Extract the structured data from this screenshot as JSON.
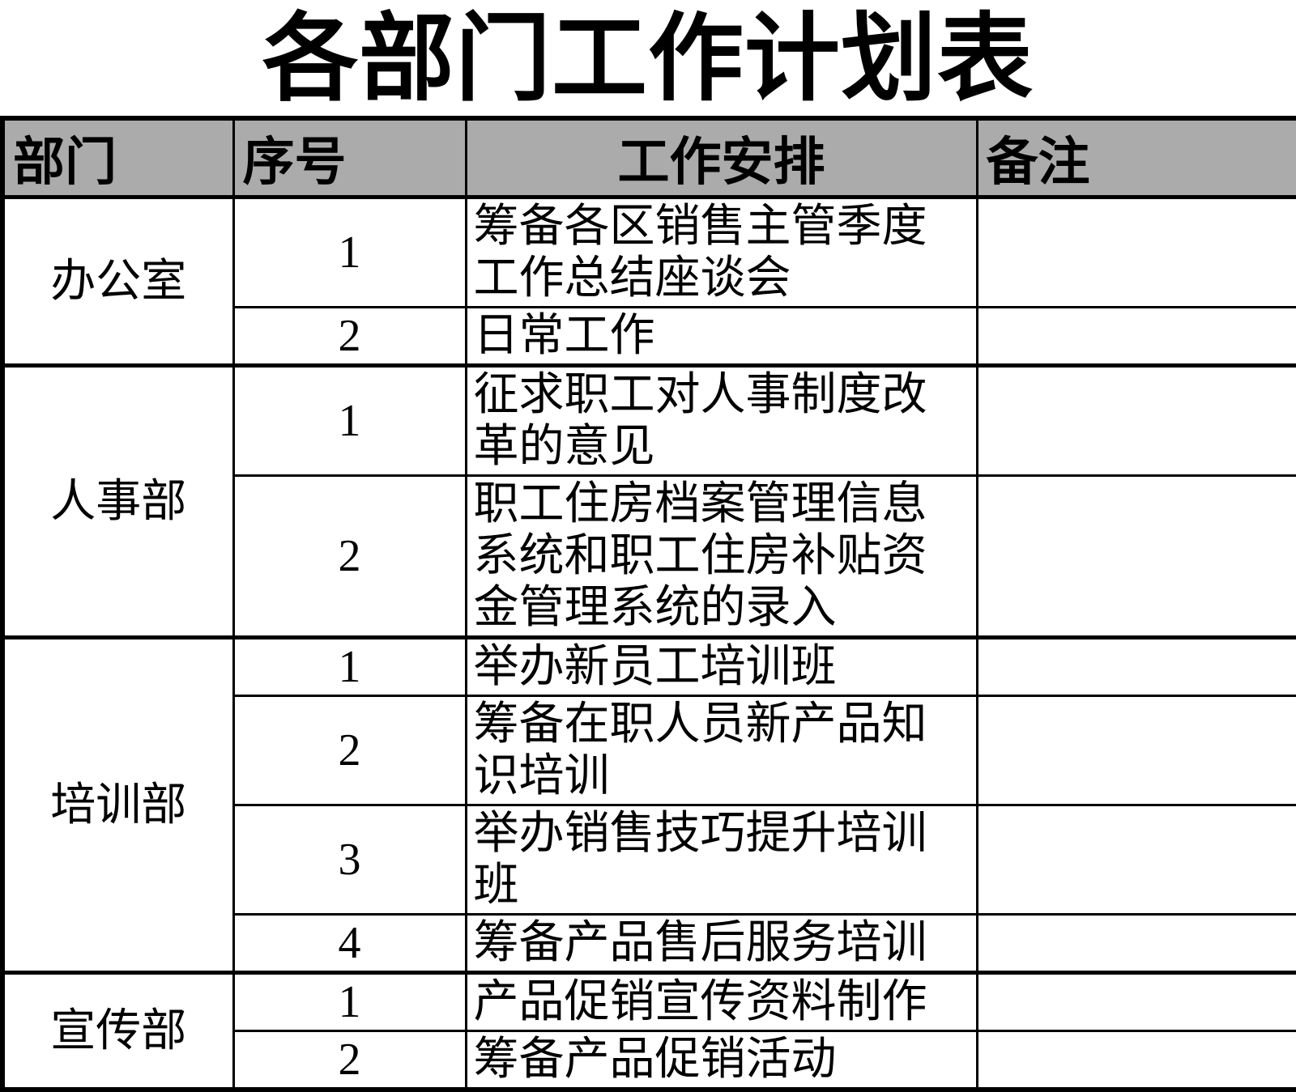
{
  "title": "各部门工作计划表",
  "colors": {
    "header_bg": "#ababab",
    "border": "#000000",
    "text": "#000000",
    "page_bg": "#ffffff"
  },
  "table": {
    "headers": {
      "department": "部门",
      "no": "序号",
      "task": "工作安排",
      "note": "备注"
    },
    "sections": [
      {
        "department": "办公室",
        "rows": [
          {
            "no": "1",
            "task": "筹备各区销售主管季度工作总结座谈会",
            "note": ""
          },
          {
            "no": "2",
            "task": "日常工作",
            "note": ""
          }
        ]
      },
      {
        "department": "人事部",
        "rows": [
          {
            "no": "1",
            "task": "征求职工对人事制度改革的意见",
            "note": ""
          },
          {
            "no": "2",
            "task": "职工住房档案管理信息系统和职工住房补贴资金管理系统的录入",
            "note": ""
          }
        ]
      },
      {
        "department": "培训部",
        "rows": [
          {
            "no": "1",
            "task": "举办新员工培训班",
            "note": ""
          },
          {
            "no": "2",
            "task": "筹备在职人员新产品知识培训",
            "note": ""
          },
          {
            "no": "3",
            "task": "举办销售技巧提升培训班",
            "note": ""
          },
          {
            "no": "4",
            "task": "筹备产品售后服务培训",
            "note": ""
          }
        ]
      },
      {
        "department": "宣传部",
        "rows": [
          {
            "no": "1",
            "task": "产品促销宣传资料制作",
            "note": ""
          },
          {
            "no": "2",
            "task": "筹备产品促销活动",
            "note": ""
          }
        ]
      }
    ]
  }
}
